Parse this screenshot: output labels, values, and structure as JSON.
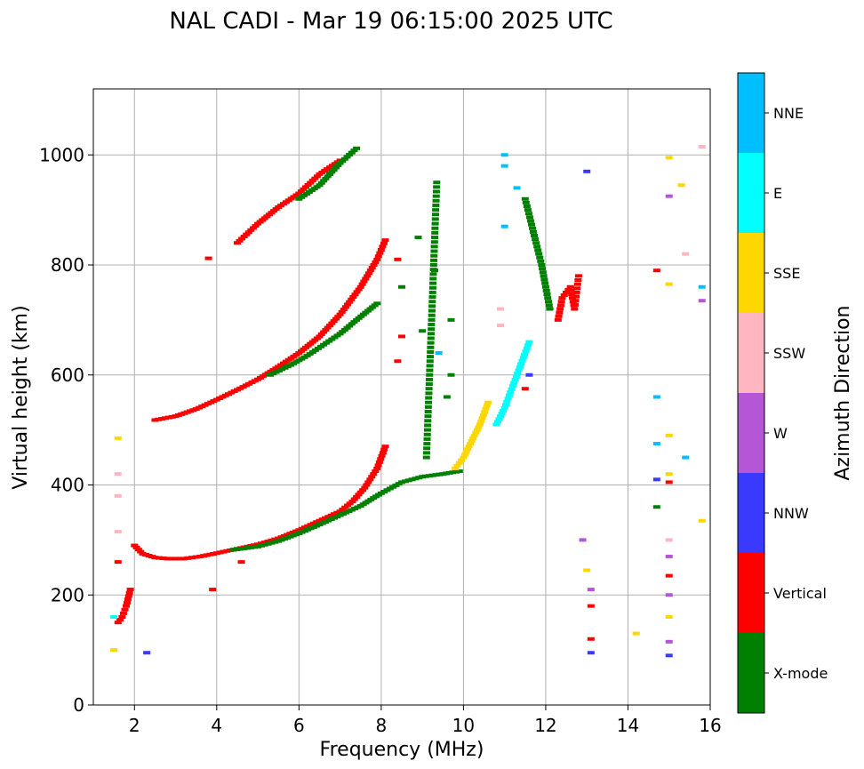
{
  "chart_data": {
    "type": "scatter",
    "title": "NAL CADI - Mar 19 06:15:00 2025 UTC",
    "xlabel": "Frequency (MHz)",
    "ylabel": "Virtual height (km)",
    "xlim": [
      1.0,
      16.0
    ],
    "ylim": [
      0,
      1120
    ],
    "xticks": [
      2,
      4,
      6,
      8,
      10,
      12,
      14,
      16
    ],
    "yticks": [
      0,
      200,
      400,
      600,
      800,
      1000
    ],
    "grid": true,
    "colorbar": {
      "label": "Azimuth Direction",
      "entries": [
        {
          "name": "X-mode",
          "color": "#008000"
        },
        {
          "name": "Vertical",
          "color": "#ff0000"
        },
        {
          "name": "NNW",
          "color": "#3a3aff"
        },
        {
          "name": "W",
          "color": "#b456d6"
        },
        {
          "name": "SSW",
          "color": "#ffb6c1"
        },
        {
          "name": "SSE",
          "color": "#ffd700"
        },
        {
          "name": "E",
          "color": "#00ffff"
        },
        {
          "name": "NNE",
          "color": "#00bfff"
        }
      ]
    },
    "traces": [
      {
        "name": "F-layer O-mode trace",
        "direction": "Vertical",
        "points": [
          [
            2.0,
            290
          ],
          [
            2.2,
            275
          ],
          [
            2.5,
            268
          ],
          [
            2.8,
            266
          ],
          [
            3.2,
            266
          ],
          [
            3.6,
            270
          ],
          [
            4.0,
            276
          ],
          [
            4.5,
            284
          ],
          [
            5.0,
            292
          ],
          [
            5.5,
            303
          ],
          [
            6.0,
            318
          ],
          [
            6.5,
            335
          ],
          [
            7.0,
            352
          ],
          [
            7.3,
            370
          ],
          [
            7.6,
            395
          ],
          [
            7.9,
            430
          ],
          [
            8.1,
            470
          ]
        ]
      },
      {
        "name": "F-layer X-mode trace",
        "direction": "X-mode",
        "points": [
          [
            4.4,
            282
          ],
          [
            5.0,
            288
          ],
          [
            5.5,
            298
          ],
          [
            6.0,
            312
          ],
          [
            6.5,
            328
          ],
          [
            7.0,
            345
          ],
          [
            7.5,
            362
          ],
          [
            8.0,
            385
          ],
          [
            8.5,
            405
          ],
          [
            9.0,
            415
          ],
          [
            9.5,
            420
          ],
          [
            9.9,
            425
          ]
        ]
      },
      {
        "name": "Second-hop O-mode trace",
        "direction": "Vertical",
        "points": [
          [
            2.5,
            518
          ],
          [
            3.0,
            525
          ],
          [
            3.5,
            538
          ],
          [
            4.0,
            555
          ],
          [
            4.5,
            573
          ],
          [
            5.0,
            592
          ],
          [
            5.5,
            615
          ],
          [
            6.0,
            640
          ],
          [
            6.5,
            670
          ],
          [
            7.0,
            710
          ],
          [
            7.5,
            760
          ],
          [
            7.9,
            810
          ],
          [
            8.1,
            845
          ]
        ]
      },
      {
        "name": "Second-hop X-mode trace",
        "direction": "X-mode",
        "points": [
          [
            5.3,
            600
          ],
          [
            5.8,
            618
          ],
          [
            6.2,
            635
          ],
          [
            6.6,
            655
          ],
          [
            7.0,
            675
          ],
          [
            7.4,
            700
          ],
          [
            7.9,
            730
          ]
        ]
      },
      {
        "name": "Third-hop O-mode trace",
        "direction": "Vertical",
        "points": [
          [
            4.5,
            840
          ],
          [
            5.0,
            875
          ],
          [
            5.5,
            905
          ],
          [
            6.0,
            930
          ],
          [
            6.5,
            965
          ],
          [
            7.0,
            990
          ]
        ]
      },
      {
        "name": "Third-hop X-mode trace",
        "direction": "X-mode",
        "points": [
          [
            6.0,
            920
          ],
          [
            6.5,
            945
          ],
          [
            7.0,
            985
          ],
          [
            7.4,
            1012
          ]
        ]
      },
      {
        "name": "Sporadic E low trace",
        "direction": "Vertical",
        "points": [
          [
            1.6,
            150
          ],
          [
            1.7,
            160
          ],
          [
            1.8,
            180
          ],
          [
            1.9,
            210
          ]
        ]
      },
      {
        "name": "Oblique trace near 10 MHz",
        "direction": "SSE",
        "points": [
          [
            9.8,
            430
          ],
          [
            10.0,
            450
          ],
          [
            10.2,
            480
          ],
          [
            10.4,
            510
          ],
          [
            10.6,
            550
          ]
        ]
      },
      {
        "name": "Oblique trace near 11 MHz",
        "direction": "E",
        "points": [
          [
            10.8,
            510
          ],
          [
            11.0,
            540
          ],
          [
            11.2,
            580
          ],
          [
            11.4,
            620
          ],
          [
            11.6,
            660
          ]
        ]
      },
      {
        "name": "X-mode column near 9.2 MHz",
        "direction": "X-mode",
        "points": [
          [
            9.1,
            450
          ],
          [
            9.15,
            550
          ],
          [
            9.2,
            650
          ],
          [
            9.25,
            750
          ],
          [
            9.3,
            850
          ],
          [
            9.35,
            950
          ]
        ]
      },
      {
        "name": "X-mode cluster near 11.7 MHz",
        "direction": "X-mode",
        "points": [
          [
            11.5,
            920
          ],
          [
            11.7,
            860
          ],
          [
            11.9,
            800
          ],
          [
            12.0,
            760
          ],
          [
            12.1,
            720
          ]
        ]
      },
      {
        "name": "Mixed cluster near 12.6 MHz",
        "direction": "Vertical",
        "points": [
          [
            12.3,
            700
          ],
          [
            12.4,
            740
          ],
          [
            12.6,
            760
          ],
          [
            12.7,
            720
          ],
          [
            12.8,
            780
          ]
        ]
      }
    ],
    "scatter_points": [
      [
        13.1,
        95,
        "NNW"
      ],
      [
        13.1,
        120,
        "Vertical"
      ],
      [
        13.1,
        180,
        "Vertical"
      ],
      [
        13.1,
        210,
        "W"
      ],
      [
        12.9,
        300,
        "W"
      ],
      [
        13.0,
        970,
        "NNW"
      ],
      [
        13.0,
        245,
        "SSE"
      ],
      [
        14.2,
        130,
        "SSE"
      ],
      [
        14.7,
        560,
        "NNE"
      ],
      [
        14.7,
        475,
        "NNE"
      ],
      [
        14.7,
        410,
        "NNW"
      ],
      [
        14.7,
        360,
        "X-mode"
      ],
      [
        14.7,
        790,
        "Vertical"
      ],
      [
        15.0,
        995,
        "SSE"
      ],
      [
        15.0,
        925,
        "W"
      ],
      [
        15.0,
        765,
        "SSE"
      ],
      [
        15.0,
        490,
        "SSE"
      ],
      [
        15.0,
        420,
        "SSE"
      ],
      [
        15.0,
        405,
        "Vertical"
      ],
      [
        15.0,
        300,
        "SSW"
      ],
      [
        15.0,
        270,
        "W"
      ],
      [
        15.0,
        235,
        "Vertical"
      ],
      [
        15.0,
        200,
        "W"
      ],
      [
        15.0,
        160,
        "SSE"
      ],
      [
        15.0,
        115,
        "W"
      ],
      [
        15.0,
        90,
        "NNW"
      ],
      [
        15.3,
        945,
        "SSE"
      ],
      [
        15.4,
        820,
        "SSW"
      ],
      [
        15.4,
        450,
        "NNE"
      ],
      [
        15.8,
        1015,
        "SSW"
      ],
      [
        15.8,
        760,
        "NNE"
      ],
      [
        15.8,
        735,
        "W"
      ],
      [
        15.8,
        335,
        "SSE"
      ],
      [
        11.0,
        1000,
        "NNE"
      ],
      [
        11.0,
        980,
        "NNE"
      ],
      [
        11.0,
        870,
        "NNE"
      ],
      [
        10.9,
        720,
        "SSW"
      ],
      [
        10.9,
        690,
        "SSW"
      ],
      [
        11.3,
        940,
        "NNE"
      ],
      [
        11.6,
        600,
        "NNW"
      ],
      [
        11.5,
        575,
        "Vertical"
      ],
      [
        8.4,
        810,
        "Vertical"
      ],
      [
        8.5,
        760,
        "X-mode"
      ],
      [
        8.5,
        670,
        "Vertical"
      ],
      [
        8.4,
        625,
        "Vertical"
      ],
      [
        8.9,
        850,
        "X-mode"
      ],
      [
        9.3,
        790,
        "X-mode"
      ],
      [
        9.7,
        700,
        "X-mode"
      ],
      [
        9.7,
        600,
        "X-mode"
      ],
      [
        9.0,
        680,
        "X-mode"
      ],
      [
        9.4,
        640,
        "NNE"
      ],
      [
        9.6,
        560,
        "X-mode"
      ],
      [
        1.5,
        100,
        "SSE"
      ],
      [
        1.5,
        160,
        "E"
      ],
      [
        1.6,
        260,
        "Vertical"
      ],
      [
        2.3,
        95,
        "NNW"
      ],
      [
        1.6,
        485,
        "SSE"
      ],
      [
        1.6,
        420,
        "SSW"
      ],
      [
        1.6,
        380,
        "SSW"
      ],
      [
        1.6,
        315,
        "SSW"
      ],
      [
        3.8,
        812,
        "Vertical"
      ],
      [
        4.6,
        260,
        "Vertical"
      ],
      [
        3.9,
        210,
        "Vertical"
      ]
    ]
  }
}
